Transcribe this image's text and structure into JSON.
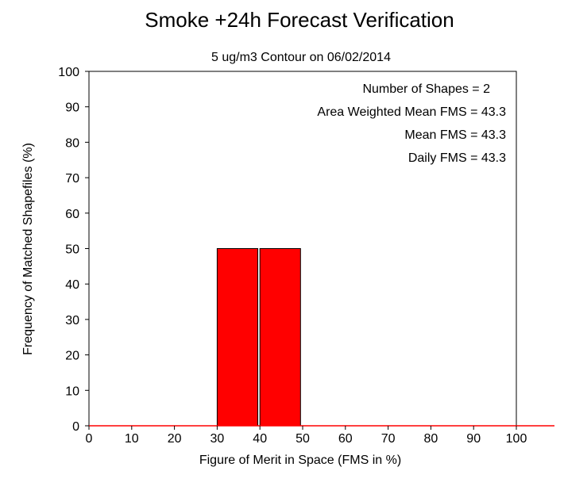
{
  "chart_data": {
    "type": "bar",
    "title": "Smoke +24h Forecast Verification",
    "subtitle": "5 ug/m3 Contour on 06/02/2014",
    "xlabel": "Figure of Merit in Space (FMS in %)",
    "ylabel": "Frequency of Matched Shapefiles (%)",
    "xlim": [
      0,
      100
    ],
    "ylim": [
      0,
      100
    ],
    "xticks": [
      0,
      10,
      20,
      30,
      40,
      50,
      60,
      70,
      80,
      90,
      100
    ],
    "yticks": [
      0,
      10,
      20,
      30,
      40,
      50,
      60,
      70,
      80,
      90,
      100
    ],
    "bins": [
      {
        "x0": 30,
        "x1": 39.5,
        "value": 50
      },
      {
        "x0": 40,
        "x1": 49.5,
        "value": 50
      }
    ],
    "bar_color": "#ff0000",
    "annotations": [
      "Number of Shapes = 2",
      "Area Weighted Mean FMS = 43.3",
      "Mean FMS = 43.3",
      "Daily FMS = 43.3"
    ],
    "grid": false
  }
}
